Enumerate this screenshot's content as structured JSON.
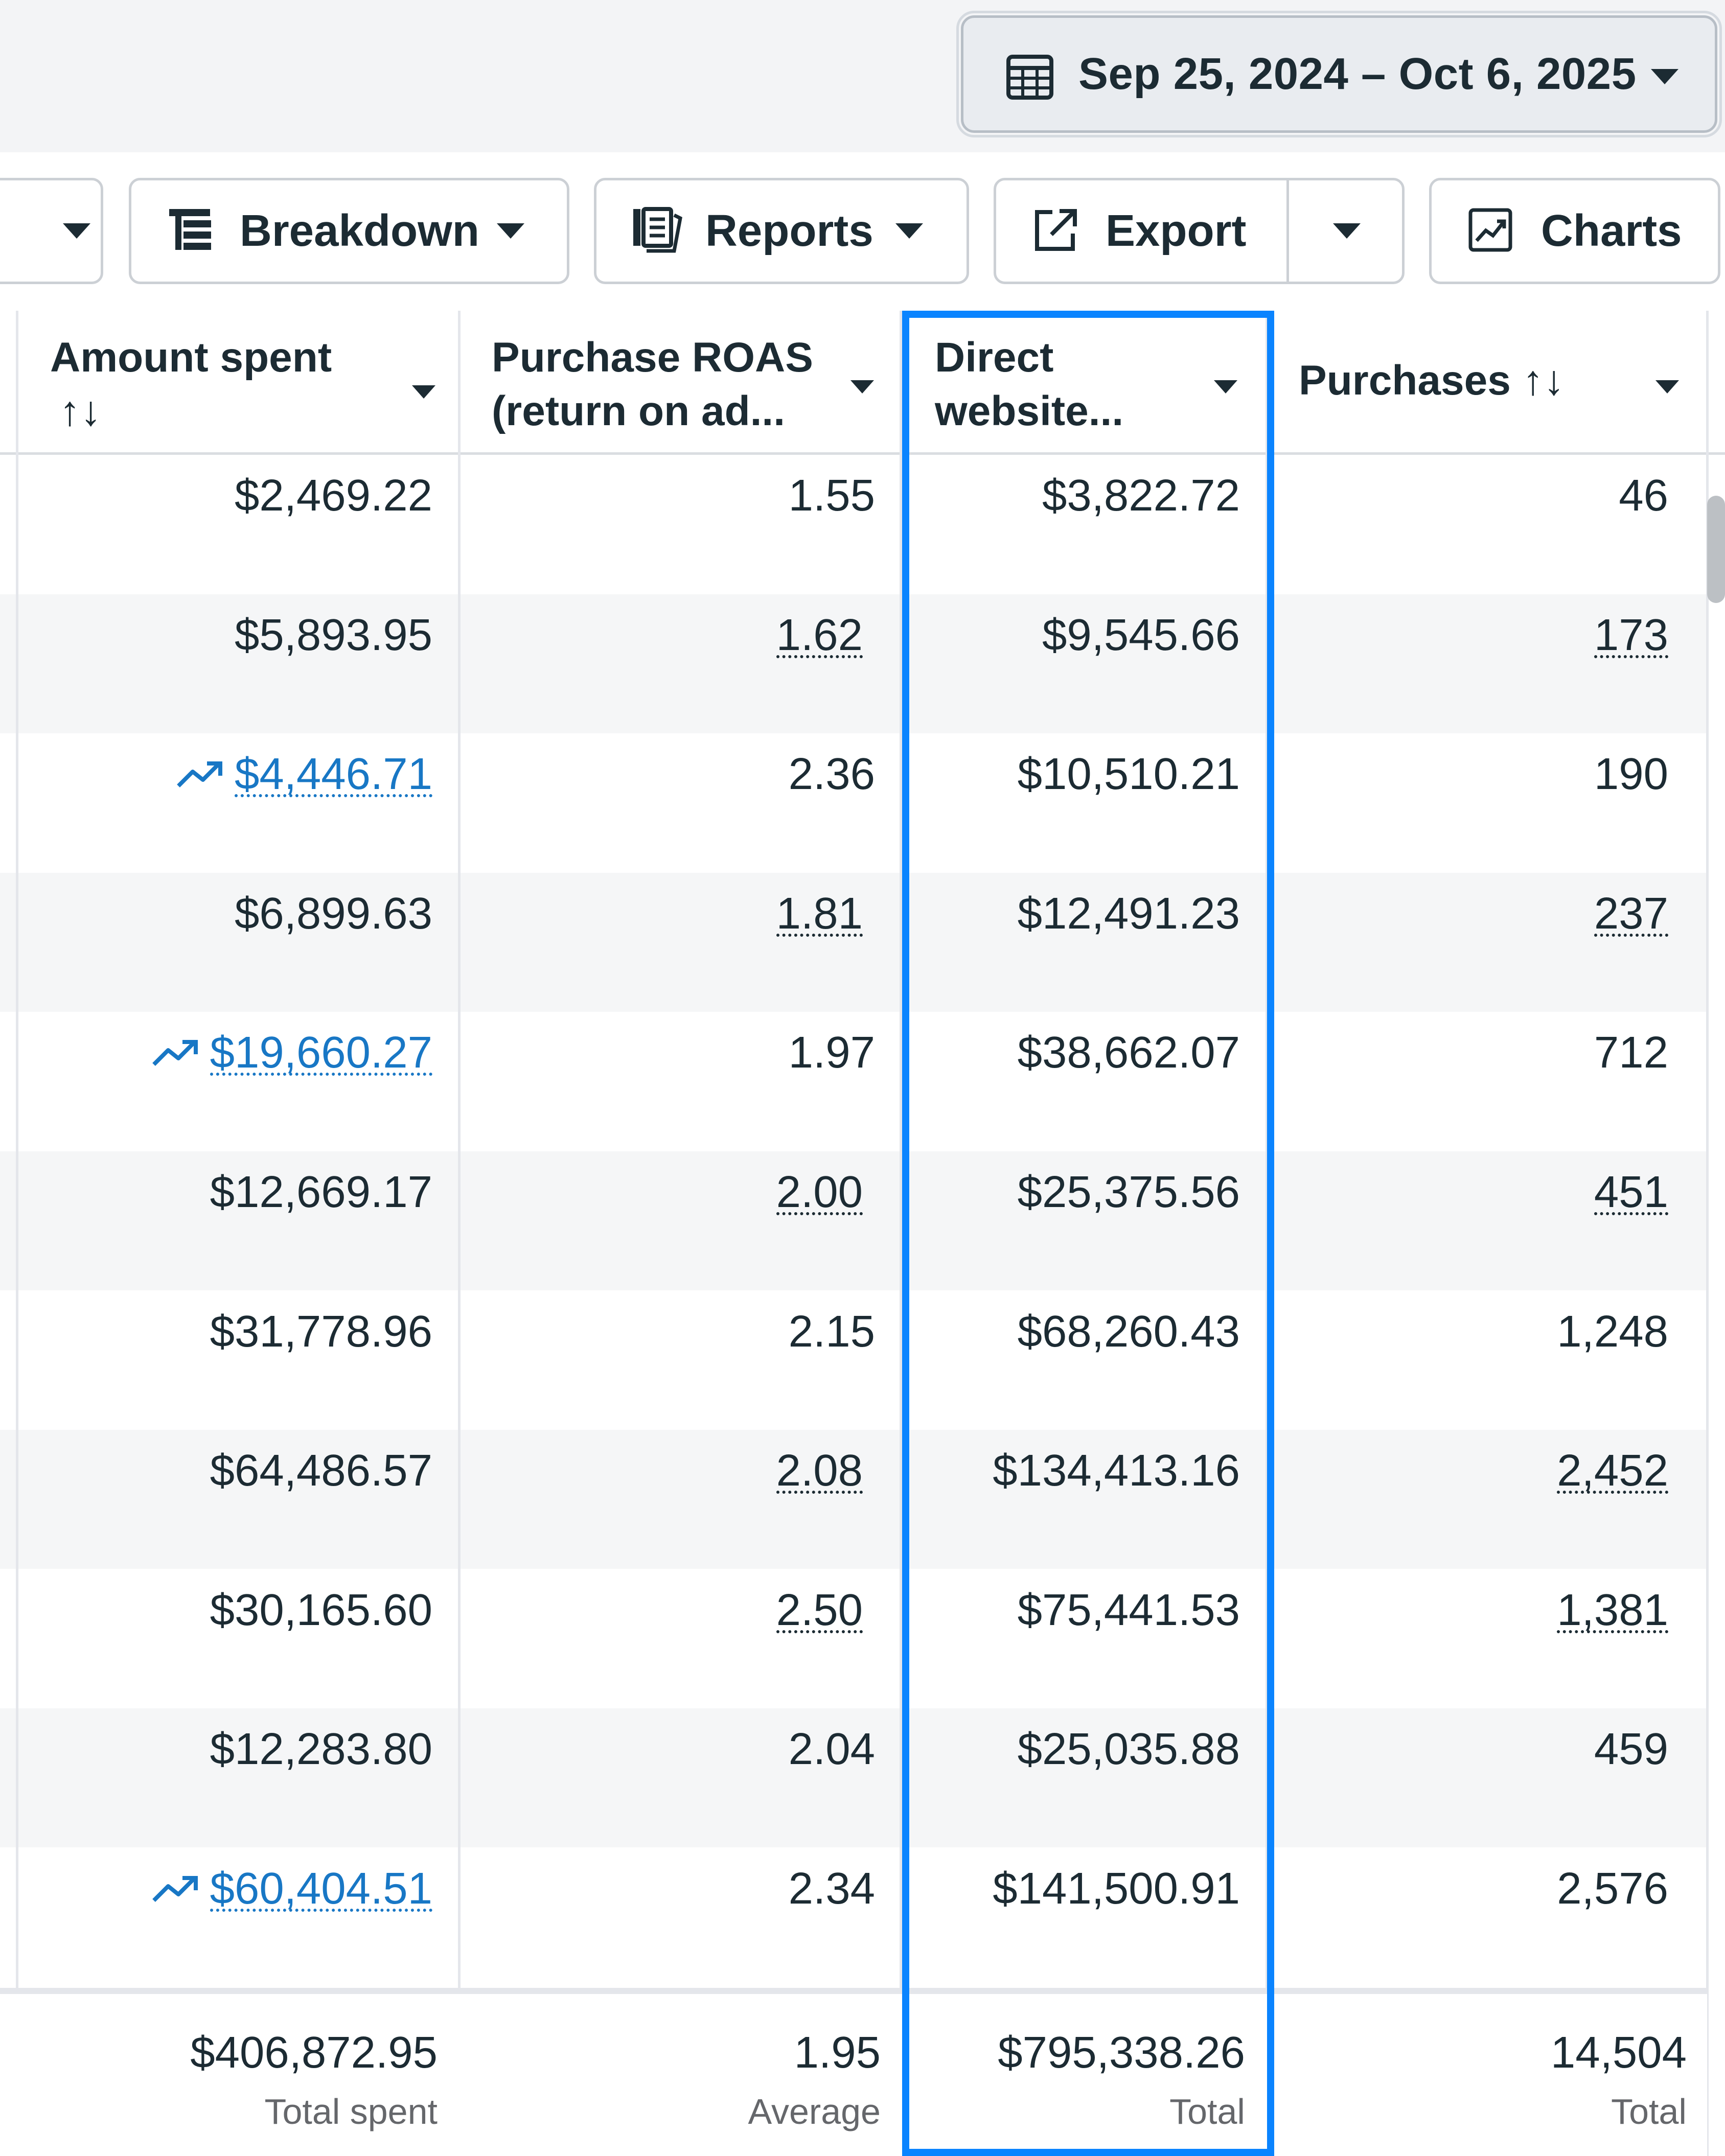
{
  "date_range": {
    "label": "Sep 25, 2024 – Oct 6, 2025"
  },
  "toolbar": {
    "breakdown_label": "Breakdown",
    "reports_label": "Reports",
    "export_label": "Export",
    "charts_label": "Charts"
  },
  "columns": {
    "amount_spent": {
      "line1": "Amount spent",
      "line2": "↑↓"
    },
    "purchase_roas": {
      "line1": "Purchase ROAS",
      "line2": "(return on ad..."
    },
    "direct_website": {
      "line1": "Direct",
      "line2": "website..."
    },
    "purchases": {
      "line1": "Purchases ↑↓"
    }
  },
  "rows": [
    {
      "amount_spent": "$2,469.22",
      "roas": "1.55",
      "direct": "$3,822.72",
      "purchases": "46"
    },
    {
      "amount_spent": "$5,893.95",
      "roas": "1.62",
      "direct": "$9,545.66",
      "purchases": "173"
    },
    {
      "amount_spent": "$4,446.71",
      "roas": "2.36",
      "direct": "$10,510.21",
      "purchases": "190"
    },
    {
      "amount_spent": "$6,899.63",
      "roas": "1.81",
      "direct": "$12,491.23",
      "purchases": "237"
    },
    {
      "amount_spent": "$19,660.27",
      "roas": "1.97",
      "direct": "$38,662.07",
      "purchases": "712"
    },
    {
      "amount_spent": "$12,669.17",
      "roas": "2.00",
      "direct": "$25,375.56",
      "purchases": "451"
    },
    {
      "amount_spent": "$31,778.96",
      "roas": "2.15",
      "direct": "$68,260.43",
      "purchases": "1,248"
    },
    {
      "amount_spent": "$64,486.57",
      "roas": "2.08",
      "direct": "$134,413.16",
      "purchases": "2,452"
    },
    {
      "amount_spent": "$30,165.60",
      "roas": "2.50",
      "direct": "$75,441.53",
      "purchases": "1,381"
    },
    {
      "amount_spent": "$12,283.80",
      "roas": "2.04",
      "direct": "$25,035.88",
      "purchases": "459"
    },
    {
      "amount_spent": "$60,404.51",
      "roas": "2.34",
      "direct": "$141,500.91",
      "purchases": "2,576"
    }
  ],
  "totals": {
    "amount_spent": "$406,872.95",
    "amount_spent_label": "Total spent",
    "roas": "1.95",
    "roas_label": "Average",
    "direct": "$795,338.26",
    "direct_label": "Total",
    "purchases": "14,504",
    "purchases_label": "Total"
  },
  "colors": {
    "highlight": "#0a84ff",
    "link": "#1877c5"
  }
}
